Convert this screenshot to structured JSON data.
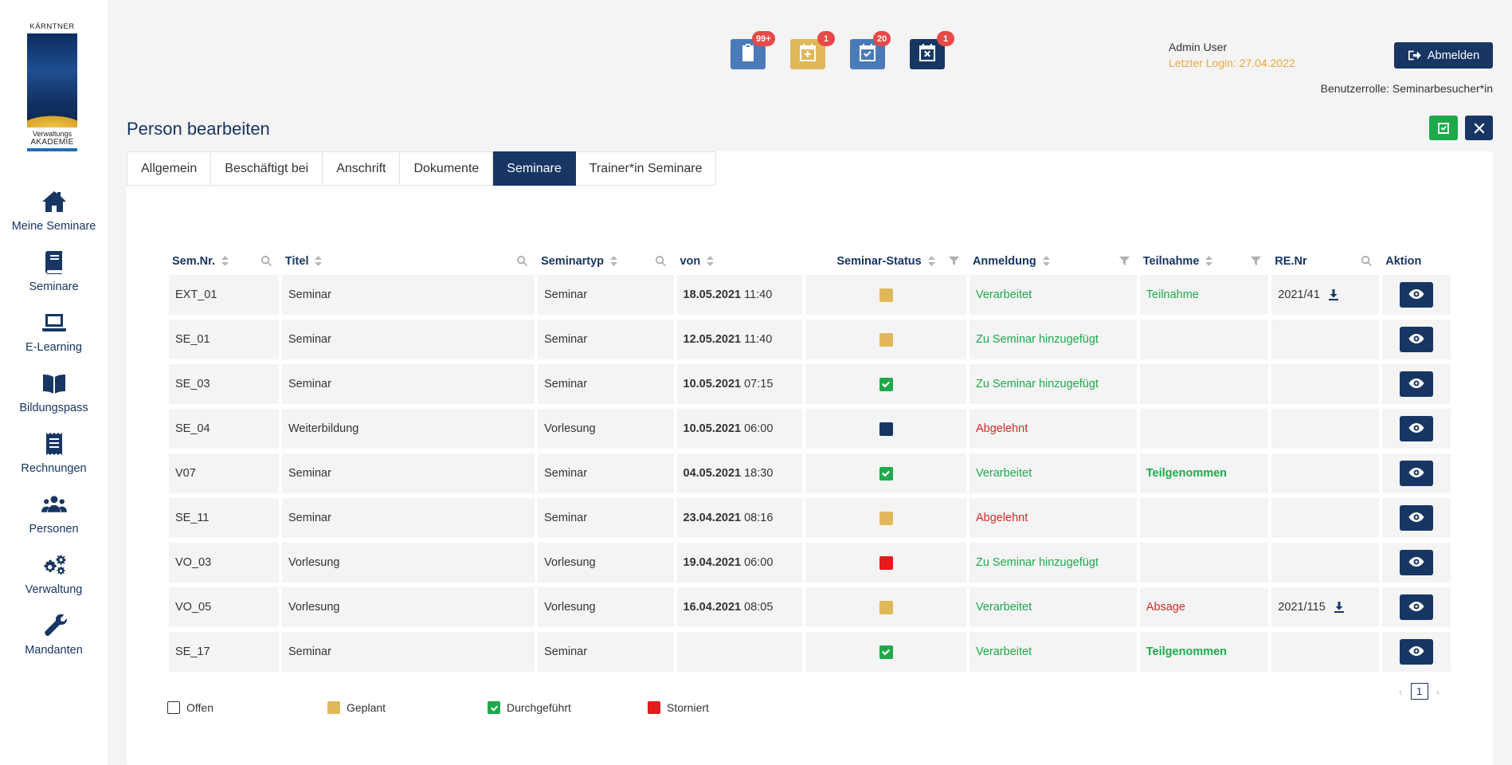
{
  "logo": {
    "top": "KÄRNTNER",
    "sub1": "Verwaltungs",
    "sub2": "AKADEMIE"
  },
  "nav": [
    {
      "label": "Meine Seminare",
      "icon": "home-icon"
    },
    {
      "label": "Seminare",
      "icon": "book-icon"
    },
    {
      "label": "E-Learning",
      "icon": "laptop-icon"
    },
    {
      "label": "Bildungspass",
      "icon": "open-book-icon"
    },
    {
      "label": "Rechnungen",
      "icon": "receipt-icon"
    },
    {
      "label": "Personen",
      "icon": "users-icon"
    },
    {
      "label": "Verwaltung",
      "icon": "gears-icon"
    },
    {
      "label": "Mandanten",
      "icon": "wrench-icon"
    }
  ],
  "header": {
    "icons": [
      {
        "name": "clipboard-check-icon",
        "badge": "99+",
        "color": "#4a7bb8"
      },
      {
        "name": "calendar-plus-icon",
        "badge": "1",
        "color": "#e0b85a"
      },
      {
        "name": "calendar-check-icon",
        "badge": "20",
        "color": "#4a7bb8"
      },
      {
        "name": "calendar-x-icon",
        "badge": "1",
        "color": "#173664"
      }
    ],
    "user_name": "Admin User",
    "last_login": "Letzter Login: 27.04.2022",
    "logout_label": "Abmelden",
    "role": "Benutzerrolle: Seminarbesucher*in"
  },
  "page_title": "Person bearbeiten",
  "tabs": [
    {
      "label": "Allgemein",
      "active": false
    },
    {
      "label": "Beschäftigt bei",
      "active": false
    },
    {
      "label": "Anschrift",
      "active": false
    },
    {
      "label": "Dokumente",
      "active": false
    },
    {
      "label": "Seminare",
      "active": true
    },
    {
      "label": "Trainer*in Seminare",
      "active": false
    }
  ],
  "table": {
    "columns": [
      "Sem.Nr.",
      "Titel",
      "Seminartyp",
      "von",
      "Seminar-Status",
      "Anmeldung",
      "Teilnahme",
      "RE.Nr",
      "Aktion"
    ],
    "rows": [
      {
        "nr": "EXT_01",
        "titel": "Seminar",
        "typ": "Seminar",
        "date": "18.05.2021",
        "time": "11:40",
        "status": "geplant",
        "anmeldung": "Verarbeitet",
        "anmeldung_style": "green",
        "teilnahme": "Teilnahme",
        "teilnahme_style": "green",
        "renr": "2021/41"
      },
      {
        "nr": "SE_01",
        "titel": "Seminar",
        "typ": "Seminar",
        "date": "12.05.2021",
        "time": "11:40",
        "status": "geplant",
        "anmeldung": "Zu Seminar hinzugefügt",
        "anmeldung_style": "green",
        "teilnahme": "",
        "teilnahme_style": "",
        "renr": ""
      },
      {
        "nr": "SE_03",
        "titel": "Seminar",
        "typ": "Seminar",
        "date": "10.05.2021",
        "time": "07:15",
        "status": "durchgefuehrt",
        "anmeldung": "Zu Seminar hinzugefügt",
        "anmeldung_style": "green",
        "teilnahme": "",
        "teilnahme_style": "",
        "renr": ""
      },
      {
        "nr": "SE_04",
        "titel": "Weiterbildung",
        "typ": "Vorlesung",
        "date": "10.05.2021",
        "time": "06:00",
        "status": "dunkel",
        "anmeldung": "Abgelehnt",
        "anmeldung_style": "red",
        "teilnahme": "",
        "teilnahme_style": "",
        "renr": ""
      },
      {
        "nr": "V07",
        "titel": "Seminar",
        "typ": "Seminar",
        "date": "04.05.2021",
        "time": "18:30",
        "status": "durchgefuehrt",
        "anmeldung": "Verarbeitet",
        "anmeldung_style": "green",
        "teilnahme": "Teilgenommen",
        "teilnahme_style": "green-bold",
        "renr": ""
      },
      {
        "nr": "SE_11",
        "titel": "Seminar",
        "typ": "Seminar",
        "date": "23.04.2021",
        "time": "08:16",
        "status": "geplant",
        "anmeldung": "Abgelehnt",
        "anmeldung_style": "red",
        "teilnahme": "",
        "teilnahme_style": "",
        "renr": ""
      },
      {
        "nr": "VO_03",
        "titel": "Vorlesung",
        "typ": "Vorlesung",
        "date": "19.04.2021",
        "time": "06:00",
        "status": "storniert",
        "anmeldung": "Zu Seminar hinzugefügt",
        "anmeldung_style": "green",
        "teilnahme": "",
        "teilnahme_style": "",
        "renr": ""
      },
      {
        "nr": "VO_05",
        "titel": "Vorlesung",
        "typ": "Vorlesung",
        "date": "16.04.2021",
        "time": "08:05",
        "status": "geplant",
        "anmeldung": "Verarbeitet",
        "anmeldung_style": "green",
        "teilnahme": "Absage",
        "teilnahme_style": "red",
        "renr": "2021/115"
      },
      {
        "nr": "SE_17",
        "titel": "Seminar",
        "typ": "Seminar",
        "date": "",
        "time": "",
        "status": "durchgefuehrt",
        "anmeldung": "Verarbeitet",
        "anmeldung_style": "green",
        "teilnahme": "Teilgenommen",
        "teilnahme_style": "green-bold",
        "renr": ""
      }
    ]
  },
  "status_colors": {
    "geplant": "#e0b85a",
    "durchgefuehrt": "#1eaa4b",
    "dunkel": "#173664",
    "storniert": "#e31b1b"
  },
  "pagination": {
    "current": "1",
    "prev": "‹",
    "next": "›"
  },
  "legend": [
    {
      "label": "Offen",
      "key": "offen"
    },
    {
      "label": "Geplant",
      "key": "geplant"
    },
    {
      "label": "Durchgeführt",
      "key": "durchgefuehrt"
    },
    {
      "label": "Storniert",
      "key": "storniert"
    }
  ]
}
